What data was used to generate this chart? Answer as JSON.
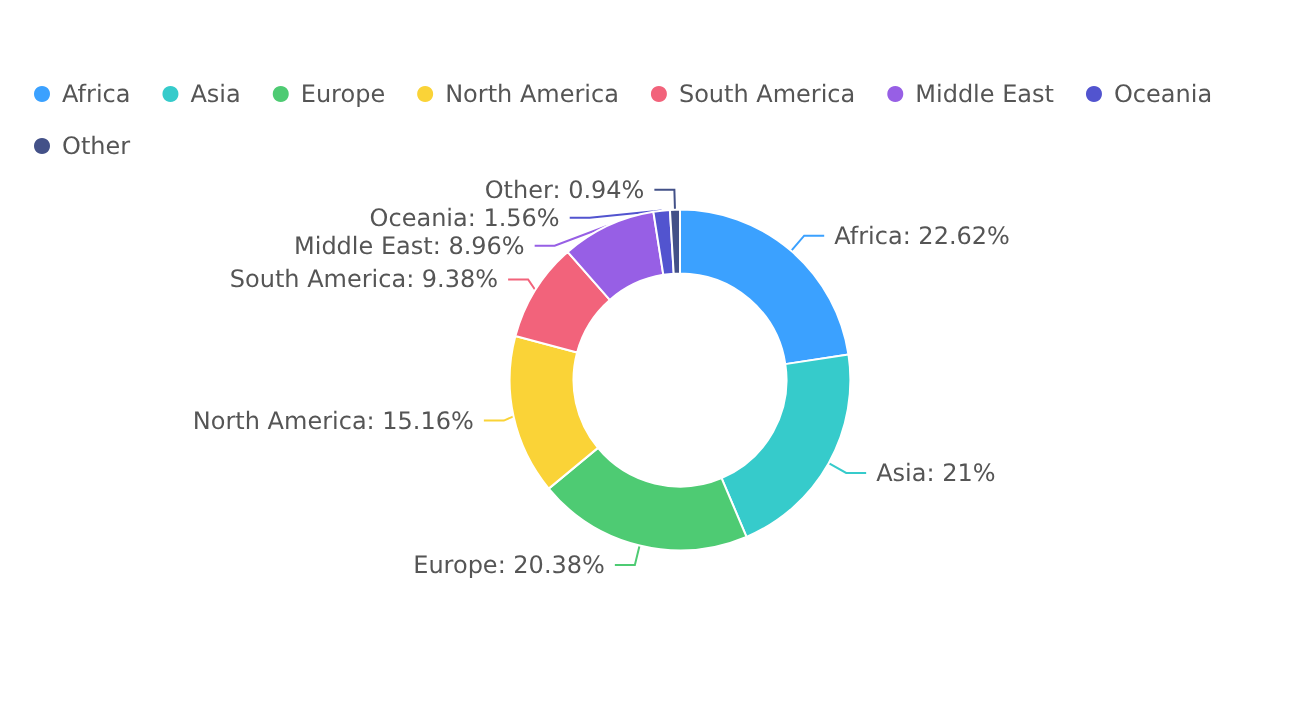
{
  "chart_data": {
    "type": "donut",
    "categories": [
      "Africa",
      "Asia",
      "Europe",
      "North America",
      "South America",
      "Middle East",
      "Oceania",
      "Other"
    ],
    "values": [
      22.62,
      21,
      20.38,
      15.16,
      9.38,
      8.96,
      1.56,
      0.94
    ],
    "value_labels": [
      "Africa: 22.62%",
      "Asia: 21%",
      "Europe: 20.38%",
      "North America: 15.16%",
      "South America: 9.38%",
      "Middle East: 8.96%",
      "Oceania: 1.56%",
      "Other: 0.94%"
    ],
    "colors": [
      "#3ba1ff",
      "#36cbcb",
      "#4ecb73",
      "#fad337",
      "#f2637b",
      "#975fe5",
      "#5254cf",
      "#435188"
    ],
    "legend": "top left"
  }
}
